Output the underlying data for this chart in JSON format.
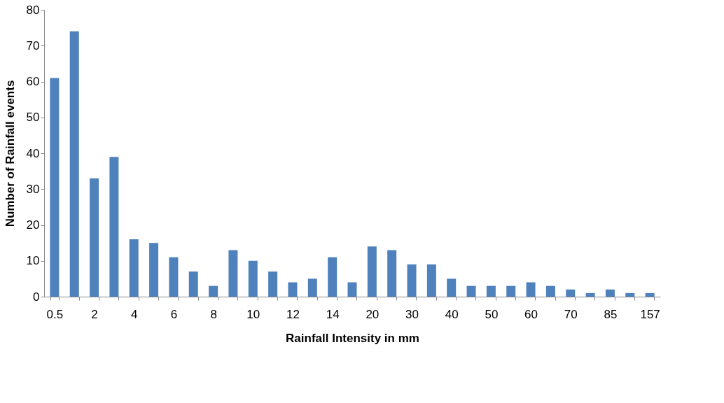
{
  "chart_data": {
    "type": "bar",
    "xlabel": "Rainfall Intensity in mm",
    "ylabel": "Number of Rainfall events",
    "categories": [
      "0.5",
      null,
      "2",
      null,
      "4",
      null,
      "6",
      null,
      "8",
      null,
      "10",
      null,
      "12",
      null,
      "14",
      null,
      "20",
      null,
      "30",
      null,
      "40",
      null,
      "50",
      null,
      "60",
      null,
      "70",
      null,
      "85",
      null,
      "157"
    ],
    "values": [
      61,
      74,
      33,
      39,
      16,
      15,
      11,
      7,
      3,
      13,
      10,
      7,
      4,
      5,
      11,
      4,
      14,
      13,
      9,
      9,
      5,
      3,
      3,
      3,
      4,
      3,
      2,
      1,
      2,
      1,
      1
    ],
    "color": "#4f81bd",
    "ylim": [
      0,
      80
    ],
    "yticks": [
      0,
      10,
      20,
      30,
      40,
      50,
      60,
      70,
      80
    ],
    "grid": false
  }
}
